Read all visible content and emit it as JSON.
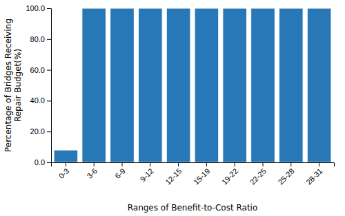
{
  "chart_data": {
    "type": "bar",
    "categories": [
      "0-3",
      "3-6",
      "6-9",
      "9-12",
      "12-15",
      "15-19",
      "19-22",
      "22-25",
      "25-28",
      "28-31"
    ],
    "values": [
      8.0,
      100.0,
      100.0,
      100.0,
      100.0,
      100.0,
      100.0,
      100.0,
      100.0,
      100.0
    ],
    "color": "#2878B8",
    "xlabel": "Ranges of Benefit-to-Cost Ratio",
    "ylabel": "Percentage of Bridges Receiving\nRepair Budget(%)",
    "ylim": [
      0.0,
      100.0
    ],
    "yticks": [
      {
        "value": 0.0,
        "label": "0.0"
      },
      {
        "value": 20.0,
        "label": "20.0"
      },
      {
        "value": 40.0,
        "label": "40.0"
      },
      {
        "value": 60.0,
        "label": "60.0"
      },
      {
        "value": 80.0,
        "label": "80.0"
      },
      {
        "value": 100.0,
        "label": "100.0"
      }
    ],
    "grid": false
  }
}
